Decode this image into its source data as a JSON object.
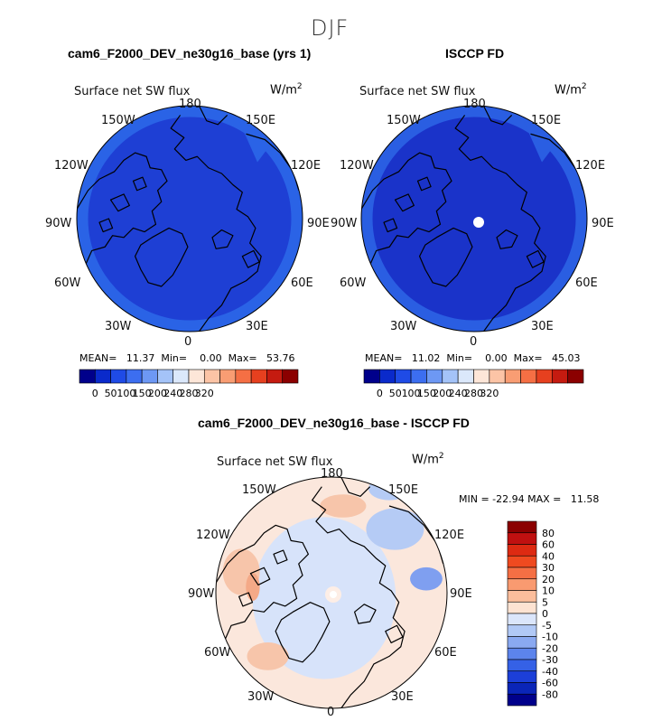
{
  "season": "DJF",
  "panels": [
    {
      "title": "cam6_F2000_DEV_ne30g16_base (yrs 1)",
      "field": "Surface net SW flux",
      "units": "W/m",
      "units_exp": "2",
      "labels": {
        "top": "180",
        "bottom": "0",
        "left": "90W",
        "right": "90E",
        "ul": "150W",
        "ur": "150E",
        "ml": "120W",
        "mr": "120E",
        "ll": "60W",
        "lr": "60E",
        "bl": "30W",
        "br": "30E"
      },
      "stats": {
        "mean": "11.37",
        "min": "0.00",
        "max": "53.76"
      },
      "stats_text": "MEAN=   11.37  Min=    0.00  Max=   53.76",
      "colorbar_ticks": [
        "0",
        "50",
        "100",
        "150",
        "200",
        "240",
        "280",
        "320"
      ],
      "colorbar_colors": [
        "#00008b",
        "#0a2acb",
        "#1f4be6",
        "#3c6ef0",
        "#6d98f4",
        "#a4c3f8",
        "#dbe8fb",
        "#fde6d8",
        "#fcc4a6",
        "#f99d73",
        "#f56f44",
        "#e6401f",
        "#c51b10",
        "#8b0000"
      ],
      "colors": {
        "fill": "#1e3fd4",
        "edge": "#2a63e6",
        "land": "#1b38c8"
      },
      "hole": false
    },
    {
      "title": "ISCCP FD",
      "field": "Surface net SW flux",
      "units": "W/m",
      "units_exp": "2",
      "labels": {
        "top": "180",
        "bottom": "0",
        "left": "90W",
        "right": "90E",
        "ul": "150W",
        "ur": "150E",
        "ml": "120W",
        "mr": "120E",
        "ll": "60W",
        "lr": "60E",
        "bl": "30W",
        "br": "30E"
      },
      "stats": {
        "mean": "11.02",
        "min": "0.00",
        "max": "45.03"
      },
      "stats_text": "MEAN=   11.02  Min=    0.00  Max=   45.03",
      "colorbar_ticks": [
        "0",
        "50",
        "100",
        "150",
        "200",
        "240",
        "280",
        "320"
      ],
      "colorbar_colors": [
        "#00008b",
        "#0a2acb",
        "#1f4be6",
        "#3c6ef0",
        "#6d98f4",
        "#a4c3f8",
        "#dbe8fb",
        "#fde6d8",
        "#fcc4a6",
        "#f99d73",
        "#f56f44",
        "#e6401f",
        "#c51b10",
        "#8b0000"
      ],
      "colors": {
        "fill": "#1a33c9",
        "edge": "#2a5ee2",
        "land": "#1a33c9"
      },
      "hole": true
    }
  ],
  "diff_panel": {
    "title": "cam6_F2000_DEV_ne30g16_base - ISCCP FD",
    "field": "Surface net SW flux",
    "units": "W/m",
    "units_exp": "2",
    "labels": {
      "top": "180",
      "bottom": "0",
      "left": "90W",
      "right": "90E",
      "ul": "150W",
      "ur": "150E",
      "ml": "120W",
      "mr": "120E",
      "ll": "60W",
      "lr": "60E",
      "bl": "30W",
      "br": "30E"
    },
    "minmax_text": "MIN = -22.94 MAX =   11.58",
    "stats": {
      "min": "-22.94",
      "max": "11.58"
    },
    "colorbar_ticks": [
      "80",
      "60",
      "40",
      "30",
      "20",
      "10",
      "5",
      "0",
      "-5",
      "-10",
      "-20",
      "-30",
      "-40",
      "-60",
      "-80"
    ],
    "colorbar_colors": [
      "#8b0000",
      "#c01010",
      "#dd2a12",
      "#ef4a20",
      "#f56f44",
      "#f99a70",
      "#fcbe9c",
      "#fde3d2",
      "#dbe6fb",
      "#b1c9f6",
      "#8aa9f1",
      "#5c84ec",
      "#3561e6",
      "#1c3fd8",
      "#0a25b8",
      "#00008b"
    ],
    "colors": {
      "base": "#fbe7dc",
      "blue": "#d7e3fa",
      "blue2": "#b5cbf5",
      "blue3": "#7f9ff0",
      "orange": "#f7c5aa",
      "orange2": "#f4a987"
    }
  }
}
